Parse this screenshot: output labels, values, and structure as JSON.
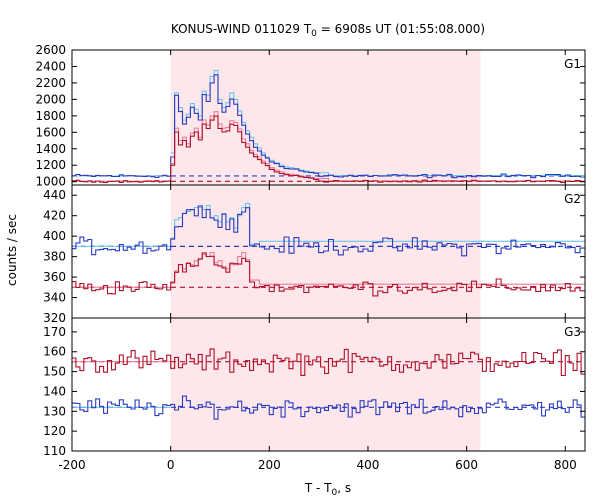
{
  "chart_data": {
    "type": "line",
    "title": "KONUS-WIND 011029 T",
    "title_sub": "0",
    "title_rest": " = 6908s UT (01:55:08.000)",
    "xlabel": "T - T",
    "xlabel_sub": "0",
    "xlabel_rest": ", s",
    "ylabel": "counts / sec",
    "xlim": [
      -200,
      840
    ],
    "xticks": [
      -200,
      0,
      200,
      400,
      600,
      800
    ],
    "xtick_labels": [
      "-200",
      "0",
      "200",
      "400",
      "600",
      "800"
    ],
    "highlight_interval": [
      0,
      628
    ],
    "colors": {
      "blue": "#2b3bbf",
      "red": "#b0102a",
      "cyan": "#6cc6e8",
      "pink": "#e87e9a",
      "shade": "#fde7ea"
    },
    "panels": [
      {
        "name": "G1",
        "ylim": [
          960,
          2600
        ],
        "yticks": [
          1000,
          1200,
          1400,
          1600,
          1800,
          2000,
          2200,
          2400,
          2600
        ],
        "ytick_labels": [
          "1000",
          "1200",
          "1400",
          "1600",
          "1800",
          "2000",
          "2200",
          "2400",
          "2600"
        ],
        "blue_bg": 1070,
        "red_bg": 1005,
        "blue_burst": [
          [
            0,
            1300
          ],
          [
            8,
            2050
          ],
          [
            16,
            1850
          ],
          [
            24,
            1700
          ],
          [
            32,
            1780
          ],
          [
            40,
            1900
          ],
          [
            48,
            1820
          ],
          [
            56,
            1750
          ],
          [
            64,
            2050
          ],
          [
            72,
            1980
          ],
          [
            80,
            2200
          ],
          [
            88,
            2300
          ],
          [
            96,
            1950
          ],
          [
            104,
            1850
          ],
          [
            112,
            1900
          ],
          [
            120,
            2000
          ],
          [
            128,
            1950
          ],
          [
            136,
            1800
          ],
          [
            144,
            1680
          ],
          [
            152,
            1580
          ],
          [
            160,
            1500
          ],
          [
            168,
            1420
          ],
          [
            176,
            1380
          ],
          [
            184,
            1320
          ],
          [
            192,
            1280
          ],
          [
            200,
            1240
          ],
          [
            210,
            1220
          ],
          [
            220,
            1190
          ],
          [
            230,
            1170
          ],
          [
            240,
            1160
          ],
          [
            250,
            1150
          ],
          [
            260,
            1130
          ],
          [
            270,
            1120
          ],
          [
            280,
            1110
          ],
          [
            290,
            1100
          ]
        ],
        "red_burst": [
          [
            0,
            1200
          ],
          [
            8,
            1600
          ],
          [
            16,
            1450
          ],
          [
            24,
            1500
          ],
          [
            32,
            1420
          ],
          [
            40,
            1550
          ],
          [
            48,
            1600
          ],
          [
            56,
            1500
          ],
          [
            64,
            1700
          ],
          [
            72,
            1650
          ],
          [
            80,
            1750
          ],
          [
            88,
            1800
          ],
          [
            96,
            1650
          ],
          [
            104,
            1600
          ],
          [
            112,
            1620
          ],
          [
            120,
            1700
          ],
          [
            128,
            1680
          ],
          [
            136,
            1600
          ],
          [
            144,
            1480
          ],
          [
            152,
            1420
          ],
          [
            160,
            1350
          ],
          [
            168,
            1300
          ],
          [
            176,
            1270
          ],
          [
            184,
            1230
          ],
          [
            192,
            1200
          ],
          [
            200,
            1150
          ],
          [
            210,
            1120
          ],
          [
            220,
            1100
          ],
          [
            230,
            1090
          ],
          [
            240,
            1080
          ],
          [
            250,
            1070
          ],
          [
            260,
            1060
          ],
          [
            270,
            1050
          ],
          [
            280,
            1040
          ],
          [
            290,
            1030
          ]
        ],
        "cyan_burst": [
          [
            0,
            1350
          ],
          [
            8,
            2080
          ],
          [
            16,
            1900
          ],
          [
            24,
            1750
          ],
          [
            32,
            1820
          ],
          [
            40,
            1950
          ],
          [
            48,
            1880
          ],
          [
            56,
            1800
          ],
          [
            64,
            2100
          ],
          [
            72,
            2050
          ],
          [
            80,
            2280
          ],
          [
            88,
            2350
          ],
          [
            96,
            2000
          ],
          [
            104,
            1900
          ],
          [
            112,
            1960
          ],
          [
            120,
            2080
          ],
          [
            128,
            2000
          ],
          [
            136,
            1860
          ],
          [
            144,
            1720
          ],
          [
            152,
            1620
          ],
          [
            160,
            1540
          ],
          [
            168,
            1460
          ],
          [
            176,
            1410
          ],
          [
            184,
            1350
          ],
          [
            192,
            1300
          ],
          [
            200,
            1260
          ],
          [
            210,
            1230
          ],
          [
            220,
            1200
          ],
          [
            230,
            1180
          ],
          [
            240,
            1170
          ],
          [
            250,
            1160
          ],
          [
            260,
            1140
          ],
          [
            270,
            1130
          ],
          [
            280,
            1120
          ],
          [
            290,
            1110
          ]
        ],
        "pink_burst": [
          [
            0,
            1220
          ],
          [
            8,
            1650
          ],
          [
            16,
            1500
          ],
          [
            24,
            1540
          ],
          [
            32,
            1460
          ],
          [
            40,
            1590
          ],
          [
            48,
            1650
          ],
          [
            56,
            1540
          ],
          [
            64,
            1750
          ],
          [
            72,
            1690
          ],
          [
            80,
            1800
          ],
          [
            88,
            1850
          ],
          [
            96,
            1700
          ],
          [
            104,
            1650
          ],
          [
            112,
            1660
          ],
          [
            120,
            1740
          ],
          [
            128,
            1720
          ],
          [
            136,
            1640
          ],
          [
            144,
            1520
          ],
          [
            152,
            1460
          ],
          [
            160,
            1380
          ],
          [
            168,
            1330
          ],
          [
            176,
            1300
          ],
          [
            184,
            1250
          ],
          [
            192,
            1220
          ],
          [
            200,
            1170
          ],
          [
            210,
            1140
          ],
          [
            220,
            1120
          ],
          [
            230,
            1100
          ],
          [
            240,
            1090
          ],
          [
            250,
            1080
          ],
          [
            260,
            1070
          ],
          [
            270,
            1060
          ],
          [
            280,
            1050
          ],
          [
            290,
            1040
          ]
        ],
        "blue_noise": 18,
        "red_noise": 10,
        "burst_end": 300
      },
      {
        "name": "G2",
        "ylim": [
          320,
          450
        ],
        "yticks": [
          320,
          340,
          360,
          380,
          400,
          420,
          440
        ],
        "ytick_labels": [
          "320",
          "340",
          "360",
          "380",
          "400",
          "420",
          "440"
        ],
        "blue_bg": 390,
        "red_bg": 350,
        "blue_burst": [
          [
            0,
            395
          ],
          [
            8,
            412
          ],
          [
            16,
            410
          ],
          [
            24,
            420
          ],
          [
            32,
            422
          ],
          [
            40,
            428
          ],
          [
            48,
            426
          ],
          [
            56,
            430
          ],
          [
            64,
            425
          ],
          [
            72,
            428
          ],
          [
            80,
            415
          ],
          [
            88,
            418
          ],
          [
            96,
            410
          ],
          [
            104,
            420
          ],
          [
            112,
            412
          ],
          [
            120,
            416
          ],
          [
            128,
            405
          ],
          [
            136,
            418
          ],
          [
            144,
            425
          ],
          [
            152,
            430
          ],
          [
            160,
            390
          ]
        ],
        "red_burst": [
          [
            0,
            352
          ],
          [
            8,
            368
          ],
          [
            16,
            370
          ],
          [
            24,
            366
          ],
          [
            32,
            372
          ],
          [
            40,
            370
          ],
          [
            48,
            374
          ],
          [
            56,
            376
          ],
          [
            64,
            380
          ],
          [
            72,
            378
          ],
          [
            80,
            382
          ],
          [
            88,
            372
          ],
          [
            96,
            374
          ],
          [
            104,
            368
          ],
          [
            112,
            366
          ],
          [
            120,
            372
          ],
          [
            128,
            370
          ],
          [
            136,
            378
          ],
          [
            144,
            382
          ],
          [
            152,
            375
          ],
          [
            160,
            355
          ]
        ],
        "cyan_burst": [
          [
            0,
            398
          ],
          [
            8,
            416
          ],
          [
            16,
            418
          ],
          [
            24,
            422
          ],
          [
            32,
            424
          ],
          [
            40,
            426
          ],
          [
            48,
            428
          ],
          [
            56,
            428
          ],
          [
            64,
            426
          ],
          [
            72,
            430
          ],
          [
            80,
            418
          ],
          [
            88,
            420
          ],
          [
            96,
            414
          ],
          [
            104,
            422
          ],
          [
            112,
            414
          ],
          [
            120,
            418
          ],
          [
            128,
            408
          ],
          [
            136,
            420
          ],
          [
            144,
            428
          ],
          [
            152,
            432
          ],
          [
            160,
            392
          ]
        ],
        "pink_burst": [
          [
            0,
            354
          ],
          [
            8,
            366
          ],
          [
            16,
            372
          ],
          [
            24,
            368
          ],
          [
            32,
            374
          ],
          [
            40,
            372
          ],
          [
            48,
            376
          ],
          [
            56,
            378
          ],
          [
            64,
            382
          ],
          [
            72,
            380
          ],
          [
            80,
            384
          ],
          [
            88,
            374
          ],
          [
            96,
            376
          ],
          [
            104,
            370
          ],
          [
            112,
            368
          ],
          [
            120,
            374
          ],
          [
            128,
            372
          ],
          [
            136,
            380
          ],
          [
            144,
            384
          ],
          [
            152,
            377
          ],
          [
            160,
            357
          ]
        ],
        "blue_noise": 7,
        "red_noise": 6,
        "burst_end": 160
      },
      {
        "name": "G3",
        "ylim": [
          110,
          177
        ],
        "yticks": [
          110,
          120,
          130,
          140,
          150,
          160,
          170
        ],
        "ytick_labels": [
          "110",
          "120",
          "130",
          "140",
          "150",
          "160",
          "170"
        ],
        "blue_bg": 132,
        "red_bg": 155,
        "blue_burst": [],
        "red_burst": [],
        "cyan_burst": [],
        "pink_burst": [],
        "blue_noise": 4,
        "red_noise": 5,
        "burst_end": 0
      }
    ]
  }
}
